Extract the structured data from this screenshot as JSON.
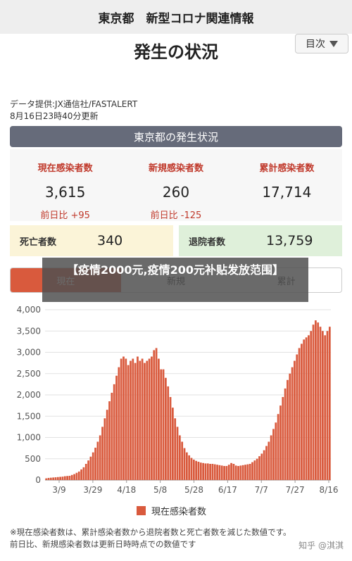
{
  "header": {
    "title": "東京都　新型コロナ関連情報"
  },
  "page": {
    "title": "発生の状況",
    "toc_label": "目次"
  },
  "source": {
    "line1": "データ提供:JX通信社/FASTALERT",
    "line2": "8月16日23時40分更新"
  },
  "section": {
    "title": "東京都の発生状況"
  },
  "stats": [
    {
      "label": "現在感染者数",
      "value": "3,615",
      "diff": "前日比 +95"
    },
    {
      "label": "新規感染者数",
      "value": "260",
      "diff": "前日比 -125"
    },
    {
      "label": "累計感染者数",
      "value": "17,714",
      "diff": ""
    }
  ],
  "deaths": {
    "label": "死亡者数",
    "value": "340"
  },
  "recovered": {
    "label": "退院者数",
    "value": "13,759"
  },
  "tabs": [
    {
      "label": "現在"
    },
    {
      "label": "新規"
    },
    {
      "label": "累計"
    }
  ],
  "overlay": {
    "text": "【疫情2000元,疫情200元补贴发放范围】"
  },
  "colors": {
    "bar": "#d95a3d",
    "header": "#666b7a",
    "accent": "#c0392b"
  },
  "chart_data": {
    "type": "bar",
    "x_tick_labels": [
      "3/9",
      "3/29",
      "4/18",
      "5/8",
      "5/28",
      "6/17",
      "7/7",
      "7/27",
      "8/16"
    ],
    "y_ticks": [
      "0",
      "500",
      "1,000",
      "1,500",
      "2,000",
      "2,500",
      "3,000",
      "3,500",
      "4,000"
    ],
    "ylim": [
      0,
      4000
    ],
    "series": [
      {
        "name": "現在感染者数",
        "values": [
          40,
          50,
          55,
          60,
          65,
          70,
          75,
          80,
          90,
          95,
          100,
          120,
          140,
          170,
          200,
          250,
          300,
          380,
          460,
          550,
          650,
          760,
          900,
          1050,
          1250,
          1450,
          1650,
          1850,
          2050,
          2250,
          2450,
          2650,
          2850,
          2900,
          2850,
          2700,
          2800,
          2850,
          2750,
          2900,
          2800,
          2850,
          2750,
          2800,
          2850,
          2900,
          3050,
          3100,
          2850,
          2600,
          2600,
          2400,
          2200,
          1950,
          1700,
          1450,
          1250,
          1050,
          900,
          750,
          650,
          580,
          520,
          480,
          450,
          430,
          410,
          400,
          390,
          390,
          380,
          380,
          370,
          360,
          350,
          340,
          330,
          330,
          360,
          400,
          380,
          340,
          330,
          340,
          350,
          360,
          370,
          380,
          420,
          460,
          500,
          560,
          620,
          700,
          800,
          900,
          1050,
          1200,
          1350,
          1550,
          1750,
          1950,
          2150,
          2350,
          2500,
          2650,
          2800,
          2950,
          3100,
          3200,
          3300,
          3350,
          3400,
          3500,
          3650,
          3750,
          3700,
          3600,
          3500,
          3400,
          3500,
          3600
        ]
      }
    ],
    "legend": "現在感染者数"
  },
  "footnote": {
    "line1": "※現在感染者数は、累計感染者数から退院者数と死亡者数を減じた数値です。",
    "line2": "前日比、新規感染者数は更新日時時点での数値です"
  },
  "watermark": {
    "text": "知乎 @淇淇"
  }
}
